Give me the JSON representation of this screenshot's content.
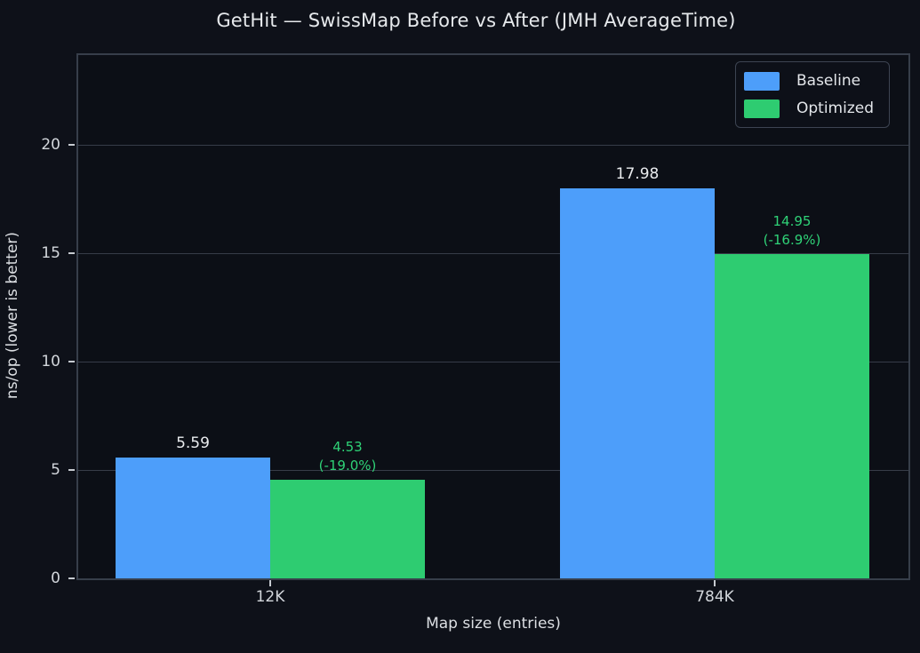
{
  "chart": {
    "title": "GetHit — SwissMap Before vs After (JMH AverageTime)",
    "xlabel": "Map size (entries)",
    "ylabel": "ns/op (lower is better)"
  },
  "chart_data": {
    "type": "bar",
    "title": "GetHit — SwissMap Before vs After (JMH AverageTime)",
    "xlabel": "Map size (entries)",
    "ylabel": "ns/op (lower is better)",
    "categories": [
      "12K",
      "784K"
    ],
    "series": [
      {
        "name": "Baseline",
        "color": "#4d9efa",
        "values": [
          5.59,
          17.98
        ],
        "bar_labels": [
          "5.59",
          "17.98"
        ]
      },
      {
        "name": "Optimized",
        "color": "#2ecc71",
        "values": [
          4.53,
          14.95
        ],
        "bar_labels": [
          "4.53\n(-19.0%)",
          "14.95\n(-16.9%)"
        ]
      }
    ],
    "yticks": [
      0,
      5,
      10,
      15,
      20
    ],
    "ylim": [
      0,
      24.14
    ],
    "grid": true,
    "grid_axis": "y",
    "legend_position": "upper right",
    "legend_entries": [
      "Baseline",
      "Optimized"
    ],
    "annotation_colors": {
      "baseline_label": "#e9ebee",
      "optimized_label": "#2fd277"
    }
  }
}
